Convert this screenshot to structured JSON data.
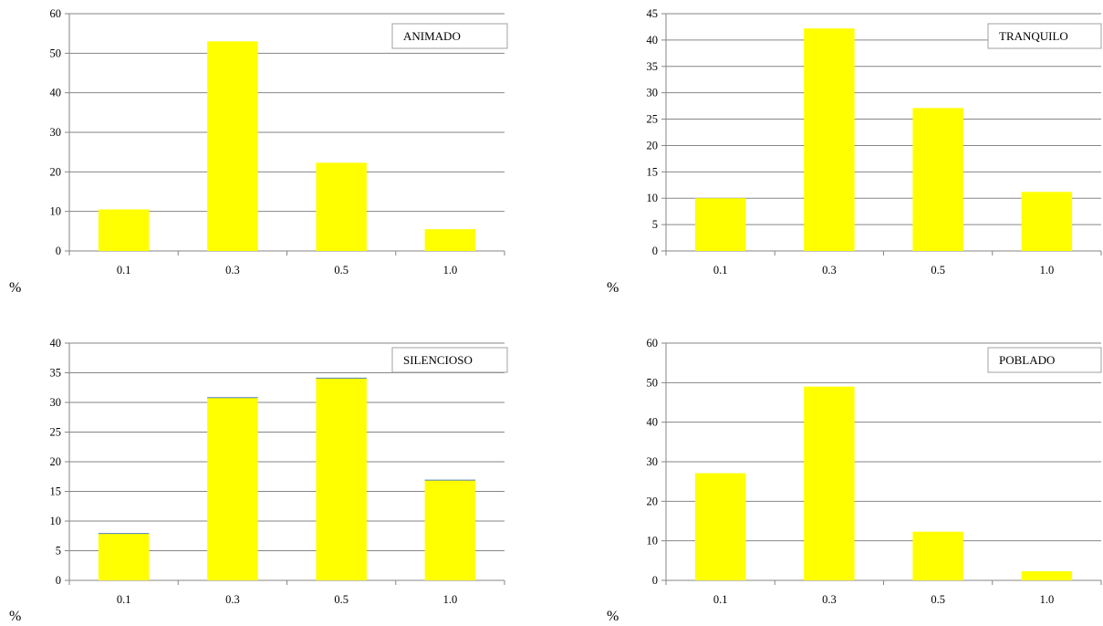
{
  "colors": {
    "bar": "#FFFF00",
    "grid": "#868686",
    "axis": "#868686",
    "bar_cap": "#4F81BD"
  },
  "chart_data": [
    {
      "type": "bar",
      "title": "",
      "legend": "ANIMADO",
      "ylabel": "%",
      "categories": [
        "0.1",
        "0.3",
        "0.5",
        "1.0"
      ],
      "values": [
        10.5,
        53,
        22.3,
        5.5
      ],
      "ylim": [
        0,
        60
      ],
      "yticks": [
        0,
        10,
        20,
        30,
        40,
        50,
        60
      ],
      "grid": true,
      "legend_position": "top-right"
    },
    {
      "type": "bar",
      "title": "",
      "legend": "TRANQUILO",
      "ylabel": "%",
      "categories": [
        "0.1",
        "0.3",
        "0.5",
        "1.0"
      ],
      "values": [
        10,
        42.2,
        27.1,
        11.2
      ],
      "ylim": [
        0,
        45
      ],
      "yticks": [
        0,
        5,
        10,
        15,
        20,
        25,
        30,
        35,
        40,
        45
      ],
      "grid": true,
      "legend_position": "top-right"
    },
    {
      "type": "bar",
      "title": "",
      "legend": "SILENCIOSO",
      "ylabel": "%",
      "categories": [
        "0.1",
        "0.3",
        "0.5",
        "1.0"
      ],
      "values": [
        7.9,
        30.8,
        34.1,
        16.9
      ],
      "ylim": [
        0,
        40
      ],
      "yticks": [
        0,
        5,
        10,
        15,
        20,
        25,
        30,
        35,
        40
      ],
      "grid": true,
      "legend_position": "top-right"
    },
    {
      "type": "bar",
      "title": "",
      "legend": "POBLADO",
      "ylabel": "%",
      "categories": [
        "0.1",
        "0.3",
        "0.5",
        "1.0"
      ],
      "values": [
        27.1,
        49,
        12.3,
        2.3
      ],
      "ylim": [
        0,
        60
      ],
      "yticks": [
        0,
        10,
        20,
        30,
        40,
        50,
        60
      ],
      "grid": true,
      "legend_position": "top-right"
    }
  ]
}
